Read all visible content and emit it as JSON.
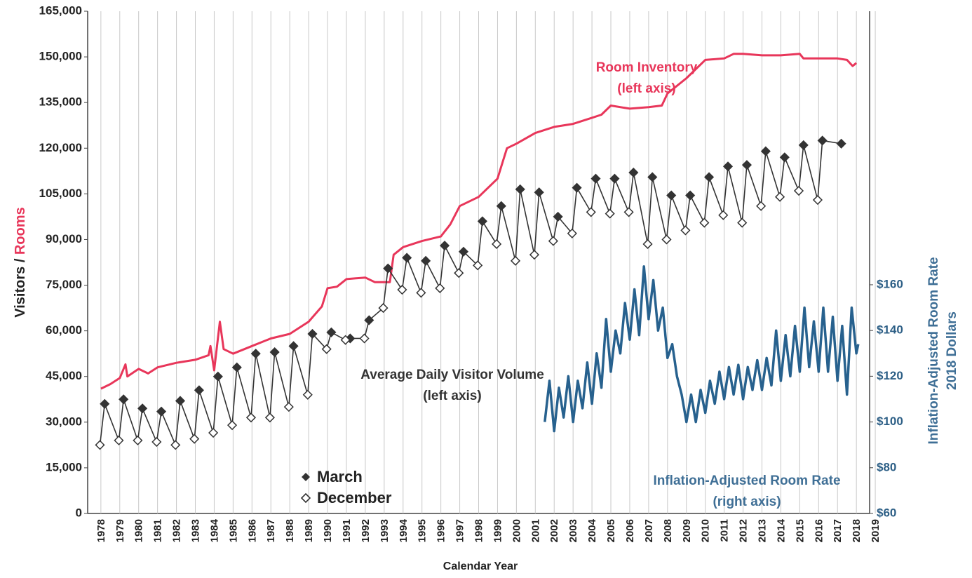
{
  "chart_data": {
    "type": "line",
    "ylabel": [
      "Visitors /",
      "Rooms"
    ],
    "y2label": [
      "Inflation-Adjusted Room Rate",
      "2018 Dollars"
    ],
    "xlabel": "Calendar Year",
    "annotations": [
      {
        "lines": [
          "Room Inventory",
          "(left axis)"
        ],
        "color": "#e8365a"
      },
      {
        "lines": [
          "Average Daily Visitor Volume",
          "(left axis)"
        ],
        "color": "#333333"
      },
      {
        "lines": [
          "Inflation-Adjusted Room Rate",
          "(right axis)"
        ],
        "color": "#3f6f96"
      }
    ],
    "xlim": [
      1977.3,
      2018.7
    ],
    "xticks": [
      1978,
      1979,
      1980,
      1981,
      1982,
      1983,
      1984,
      1985,
      1986,
      1987,
      1988,
      1989,
      1990,
      1991,
      1992,
      1993,
      1994,
      1995,
      1996,
      1997,
      1998,
      1999,
      2000,
      2001,
      2002,
      2003,
      2004,
      2005,
      2006,
      2007,
      2008,
      2009,
      2010,
      2011,
      2012,
      2013,
      2014,
      2015,
      2016,
      2017,
      2018,
      2019
    ],
    "ylim": [
      0,
      165000
    ],
    "yticks": [
      0,
      {
        "value": 15000,
        "label": "15,000"
      },
      {
        "value": 30000,
        "label": "30,000"
      },
      {
        "value": 45000,
        "label": "45,000"
      },
      {
        "value": 60000,
        "label": "60,000"
      },
      {
        "value": 75000,
        "label": "75,000"
      },
      {
        "value": 90000,
        "label": "90,000"
      },
      {
        "value": 105000,
        "label": "105,000"
      },
      {
        "value": 120000,
        "label": "120,000"
      },
      {
        "value": 135000,
        "label": "135,000"
      },
      {
        "value": 150000,
        "label": "150,000"
      },
      {
        "value": 165000,
        "label": "165,000"
      }
    ],
    "y2lim": [
      60,
      279.6
    ],
    "y2ticks": [
      {
        "value": 60,
        "label": "$60"
      },
      {
        "value": 80,
        "label": "$80"
      },
      {
        "value": 100,
        "label": "$100"
      },
      {
        "value": 120,
        "label": "$120"
      },
      {
        "value": 140,
        "label": "$140"
      },
      {
        "value": 160,
        "label": "$160"
      }
    ],
    "grid": true,
    "series": [
      {
        "color": "#e8365a",
        "x": [
          1978.0,
          1978.5,
          1979.0,
          1979.3,
          1979.4,
          1980.0,
          1980.5,
          1981.0,
          1982.0,
          1983.0,
          1983.7,
          1983.8,
          1984.0,
          1984.3,
          1984.5,
          1985.0,
          1986.0,
          1987.0,
          1988.0,
          1989.0,
          1989.7,
          1990.0,
          1990.5,
          1991.0,
          1992.0,
          1992.5,
          1993.3,
          1993.5,
          1994.0,
          1995.0,
          1996.0,
          1996.5,
          1997.0,
          1998.0,
          1999.0,
          1999.3,
          1999.5,
          2000.0,
          2001.0,
          2002.0,
          2003.0,
          2004.0,
          2004.5,
          2005.0,
          2006.0,
          2007.0,
          2007.7,
          2008.0,
          2009.0,
          2010.0,
          2011.0,
          2011.5,
          2012.0,
          2013.0,
          2014.0,
          2015.0,
          2015.2,
          2016.0,
          2017.0,
          2017.5,
          2017.8,
          2018.0
        ],
        "values": [
          41000,
          42500,
          44500,
          49000,
          45000,
          47500,
          46000,
          48000,
          49500,
          50500,
          52000,
          55000,
          47000,
          63000,
          54000,
          52500,
          55000,
          57500,
          59000,
          63000,
          68000,
          74000,
          74500,
          77000,
          77500,
          76000,
          76000,
          85000,
          87500,
          89500,
          91000,
          95000,
          101000,
          104000,
          110000,
          116000,
          120000,
          121500,
          125000,
          127000,
          128000,
          130000,
          131000,
          134000,
          133000,
          133500,
          134000,
          138000,
          143000,
          149000,
          149500,
          151000,
          151000,
          150500,
          150500,
          151000,
          149500,
          149500,
          149500,
          149000,
          147000,
          148000
        ]
      },
      {
        "name": "March",
        "color": "#333333",
        "marker": "filled",
        "x": [
          1978.2,
          1979.2,
          1980.2,
          1981.2,
          1982.2,
          1983.2,
          1984.2,
          1985.2,
          1986.2,
          1987.2,
          1988.2,
          1989.2,
          1990.2,
          1991.2,
          1992.2,
          1993.2,
          1994.2,
          1995.2,
          1996.2,
          1997.2,
          1998.2,
          1999.2,
          2000.2,
          2001.2,
          2002.2,
          2003.2,
          2004.2,
          2005.2,
          2006.2,
          2007.2,
          2008.2,
          2009.2,
          2010.2,
          2011.2,
          2012.2,
          2013.2,
          2014.2,
          2015.2,
          2016.2,
          2017.2
        ],
        "values": [
          36000,
          37500,
          34500,
          33500,
          37000,
          40500,
          45000,
          48000,
          52500,
          53000,
          55000,
          59000,
          59500,
          57500,
          63500,
          80500,
          84000,
          83000,
          88000,
          86000,
          96000,
          101000,
          106500,
          105500,
          97500,
          107000,
          110000,
          110000,
          112000,
          110500,
          104500,
          104500,
          110500,
          114000,
          114500,
          119000,
          117000,
          121000,
          122500,
          121500
        ]
      },
      {
        "name": "December",
        "color": "#333333",
        "marker": "hollow",
        "x": [
          1977.95,
          1978.95,
          1979.95,
          1980.95,
          1981.95,
          1982.95,
          1983.95,
          1984.95,
          1985.95,
          1986.95,
          1987.95,
          1988.95,
          1989.95,
          1990.95,
          1991.95,
          1992.95,
          1993.95,
          1994.95,
          1995.95,
          1996.95,
          1997.95,
          1998.95,
          1999.95,
          2000.95,
          2001.95,
          2002.95,
          2003.95,
          2004.95,
          2005.95,
          2006.95,
          2007.95,
          2008.95,
          2009.95,
          2010.95,
          2011.95,
          2012.95,
          2013.95,
          2014.95,
          2015.95
        ],
        "values": [
          22500,
          24000,
          24000,
          23500,
          22500,
          24500,
          26500,
          29000,
          31500,
          31500,
          35000,
          39000,
          54000,
          57000,
          57500,
          67500,
          73500,
          72500,
          74000,
          79000,
          81500,
          88500,
          83000,
          85000,
          89500,
          92000,
          99000,
          98500,
          99000,
          88500,
          90000,
          93000,
          95500,
          98000,
          95500,
          101000,
          104000,
          106000,
          103000
        ]
      },
      {
        "color": "#27618e",
        "axis": "y2",
        "x": [
          2001.5,
          2001.75,
          2002.0,
          2002.25,
          2002.5,
          2002.75,
          2003.0,
          2003.25,
          2003.5,
          2003.75,
          2004.0,
          2004.25,
          2004.5,
          2004.75,
          2005.0,
          2005.25,
          2005.5,
          2005.75,
          2006.0,
          2006.25,
          2006.5,
          2006.75,
          2007.0,
          2007.25,
          2007.5,
          2007.75,
          2008.0,
          2008.25,
          2008.5,
          2008.75,
          2009.0,
          2009.25,
          2009.5,
          2009.75,
          2010.0,
          2010.25,
          2010.5,
          2010.75,
          2011.0,
          2011.25,
          2011.5,
          2011.75,
          2012.0,
          2012.25,
          2012.5,
          2012.75,
          2013.0,
          2013.25,
          2013.5,
          2013.75,
          2014.0,
          2014.25,
          2014.5,
          2014.75,
          2015.0,
          2015.25,
          2015.5,
          2015.75,
          2016.0,
          2016.25,
          2016.5,
          2016.75,
          2017.0,
          2017.25,
          2017.5,
          2017.75,
          2018.0,
          2018.1
        ],
        "values": [
          100,
          118,
          96,
          115,
          102,
          120,
          100,
          118,
          106,
          126,
          108,
          130,
          115,
          145,
          122,
          140,
          130,
          152,
          136,
          158,
          138,
          168,
          145,
          162,
          140,
          150,
          128,
          134,
          120,
          112,
          100,
          112,
          100,
          114,
          104,
          118,
          108,
          122,
          110,
          124,
          112,
          125,
          110,
          124,
          114,
          127,
          114,
          128,
          116,
          140,
          118,
          138,
          120,
          142,
          122,
          150,
          124,
          144,
          122,
          150,
          122,
          146,
          118,
          142,
          112,
          150,
          130,
          134
        ]
      }
    ]
  }
}
